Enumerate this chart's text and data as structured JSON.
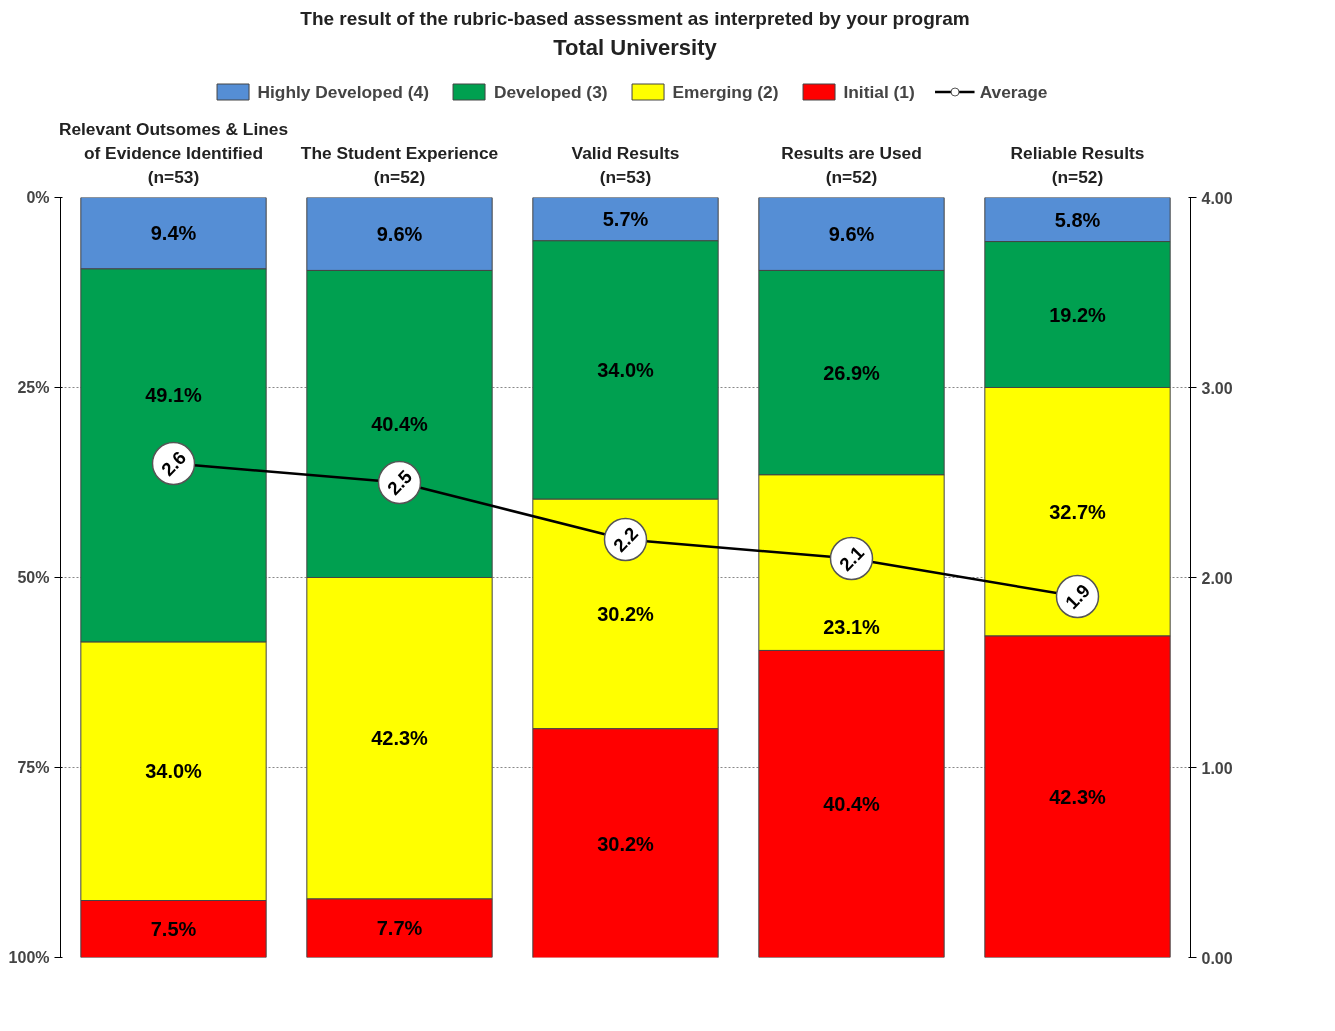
{
  "chart_data": {
    "type": "bar",
    "title": "The result of the rubric-based  assessment as interpreted  by your program",
    "subtitle": "Total University",
    "categories": [
      "Relevant Outsomes & Lines\nof Evidence Identified\n(n=53)",
      "The Student Experience\n(n=52)",
      "Valid Results\n(n=53)",
      "Results are Used\n(n=52)",
      "Reliable Results\n(n=52)"
    ],
    "stacked": true,
    "series": [
      {
        "name": "Highly Developed (4)",
        "color": "#558ed5",
        "values": [
          9.4,
          9.6,
          5.7,
          9.6,
          5.8
        ],
        "value_labels": [
          "9.4%",
          "9.6%",
          "5.7%",
          "9.6%",
          "5.8%"
        ]
      },
      {
        "name": "Developed (3)",
        "color": "#00a050",
        "values": [
          49.1,
          40.4,
          34.0,
          26.9,
          19.2
        ],
        "value_labels": [
          "49.1%",
          "40.4%",
          "34.0%",
          "26.9%",
          "19.2%"
        ]
      },
      {
        "name": "Emerging (2)",
        "color": "#ffff00",
        "values": [
          34.0,
          42.3,
          30.2,
          23.1,
          32.7
        ],
        "value_labels": [
          "34.0%",
          "42.3%",
          "30.2%",
          "23.1%",
          "32.7%"
        ]
      },
      {
        "name": "Initial (1)",
        "color": "#ff0000",
        "values": [
          7.5,
          7.7,
          30.2,
          40.4,
          42.3
        ],
        "value_labels": [
          "7.5%",
          "7.7%",
          "30.2%",
          "40.4%",
          "42.3%"
        ]
      },
      {
        "name": "Average",
        "type": "line",
        "axis": "y2",
        "color": "#000000",
        "marker": "circle",
        "values": [
          2.6,
          2.5,
          2.2,
          2.1,
          1.9
        ],
        "value_labels": [
          "2.6",
          "2.5",
          "2.2",
          "2.1",
          "1.9"
        ]
      }
    ],
    "ylim": [
      100,
      0
    ],
    "yticks": [
      {
        "value": 0,
        "label": "0%"
      },
      {
        "value": 25,
        "label": "25%"
      },
      {
        "value": 50,
        "label": "50%"
      },
      {
        "value": 75,
        "label": "75%"
      },
      {
        "value": 100,
        "label": "100%"
      }
    ],
    "y2lim": [
      0,
      4
    ],
    "y2ticks": [
      {
        "value": 0,
        "label": "0.00"
      },
      {
        "value": 1,
        "label": "1.00"
      },
      {
        "value": 2,
        "label": "2.00"
      },
      {
        "value": 3,
        "label": "3.00"
      },
      {
        "value": 4,
        "label": "4.00"
      }
    ],
    "grid": "y",
    "legend": "top"
  }
}
